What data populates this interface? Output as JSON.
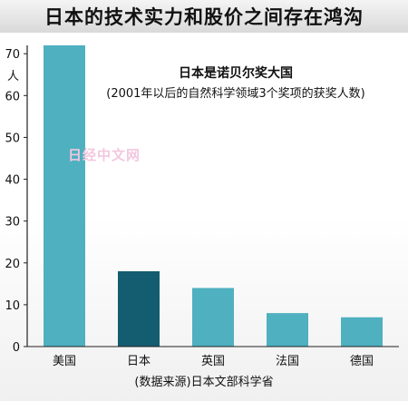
{
  "banner": {
    "title": "日本的技术实力和股价之间存在鸿沟"
  },
  "watermark": "日经中文网",
  "source": "(数据来源)日本文部科学省",
  "chart_data": {
    "type": "bar",
    "title": "日本是诺贝尔奖大国",
    "subtitle": "(2001年以后的自然科学领域3个奖项的获奖人数)",
    "ylabel": "人",
    "xlabel": "",
    "categories": [
      "美国",
      "日本",
      "英国",
      "法国",
      "德国"
    ],
    "values": [
      72,
      18,
      14,
      8,
      7
    ],
    "ylim": [
      0,
      72
    ],
    "yticks": [
      0,
      10,
      20,
      30,
      40,
      50,
      60,
      70
    ],
    "grid": false,
    "colors": {
      "default_bar": "#4fb0c0",
      "highlight_bar": "#145c70",
      "highlight_category": "日本"
    }
  }
}
